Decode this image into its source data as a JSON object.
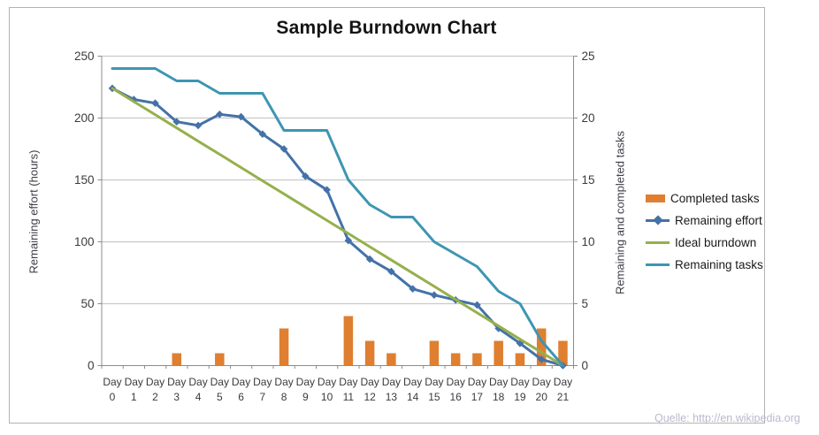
{
  "title": "Sample Burndown Chart",
  "watermark": "Quelle: http://en.wikipedia.org",
  "axes": {
    "left": {
      "title": "Remaining effort (hours)"
    },
    "right": {
      "title": "Remaining and completed tasks"
    }
  },
  "legend": [
    {
      "label": "Completed tasks",
      "color": "#DF7F2F",
      "swatch": "bar"
    },
    {
      "label": "Remaining effort",
      "color": "#4472A8",
      "swatch": "line-diamond"
    },
    {
      "label": "Ideal burndown",
      "color": "#95B04C",
      "swatch": "line"
    },
    {
      "label": "Remaining tasks",
      "color": "#3D96B2",
      "swatch": "line"
    }
  ],
  "chart_data": {
    "type": "combo",
    "title": "Sample Burndown Chart",
    "grid": "horizontal",
    "legend_position": "right",
    "categories": [
      "Day 0",
      "Day 1",
      "Day 2",
      "Day 3",
      "Day 4",
      "Day 5",
      "Day 6",
      "Day 7",
      "Day 8",
      "Day 9",
      "Day 10",
      "Day 11",
      "Day 12",
      "Day 13",
      "Day 14",
      "Day 15",
      "Day 16",
      "Day 17",
      "Day 18",
      "Day 19",
      "Day 20",
      "Day 21"
    ],
    "left_axis": {
      "label": "Remaining effort (hours)",
      "ticks": [
        0,
        50,
        100,
        150,
        200,
        250
      ],
      "max": 250
    },
    "right_axis": {
      "label": "Remaining and completed tasks",
      "ticks": [
        0,
        5,
        10,
        15,
        20,
        25
      ],
      "max": 25
    },
    "series": [
      {
        "name": "Completed tasks",
        "type": "bar",
        "axis": "right",
        "color": "#DF7F2F",
        "values": [
          0,
          0,
          0,
          1,
          0,
          1,
          0,
          0,
          3,
          0,
          0,
          4,
          2,
          1,
          0,
          2,
          1,
          1,
          2,
          1,
          3,
          2
        ]
      },
      {
        "name": "Remaining effort",
        "type": "line",
        "marker": "diamond",
        "axis": "left",
        "color": "#4472A8",
        "values": [
          224,
          215,
          212,
          197,
          194,
          203,
          201,
          187,
          175,
          153,
          142,
          101,
          86,
          76,
          62,
          57,
          53,
          49,
          30,
          18,
          5,
          0
        ]
      },
      {
        "name": "Ideal burndown",
        "type": "line",
        "axis": "left",
        "color": "#95B04C",
        "values": [
          224,
          213.3,
          202.7,
          192,
          181.3,
          170.7,
          160,
          149.3,
          138.7,
          128,
          117.3,
          106.7,
          96,
          85.3,
          74.7,
          64,
          53.3,
          42.7,
          32,
          21.3,
          10.7,
          0
        ]
      },
      {
        "name": "Remaining tasks",
        "type": "line",
        "axis": "right",
        "color": "#3D96B2",
        "values": [
          24,
          24,
          24,
          23,
          23,
          22,
          22,
          22,
          19,
          19,
          19,
          15,
          13,
          12,
          12,
          10,
          9,
          8,
          6,
          5,
          2,
          0
        ]
      }
    ]
  }
}
